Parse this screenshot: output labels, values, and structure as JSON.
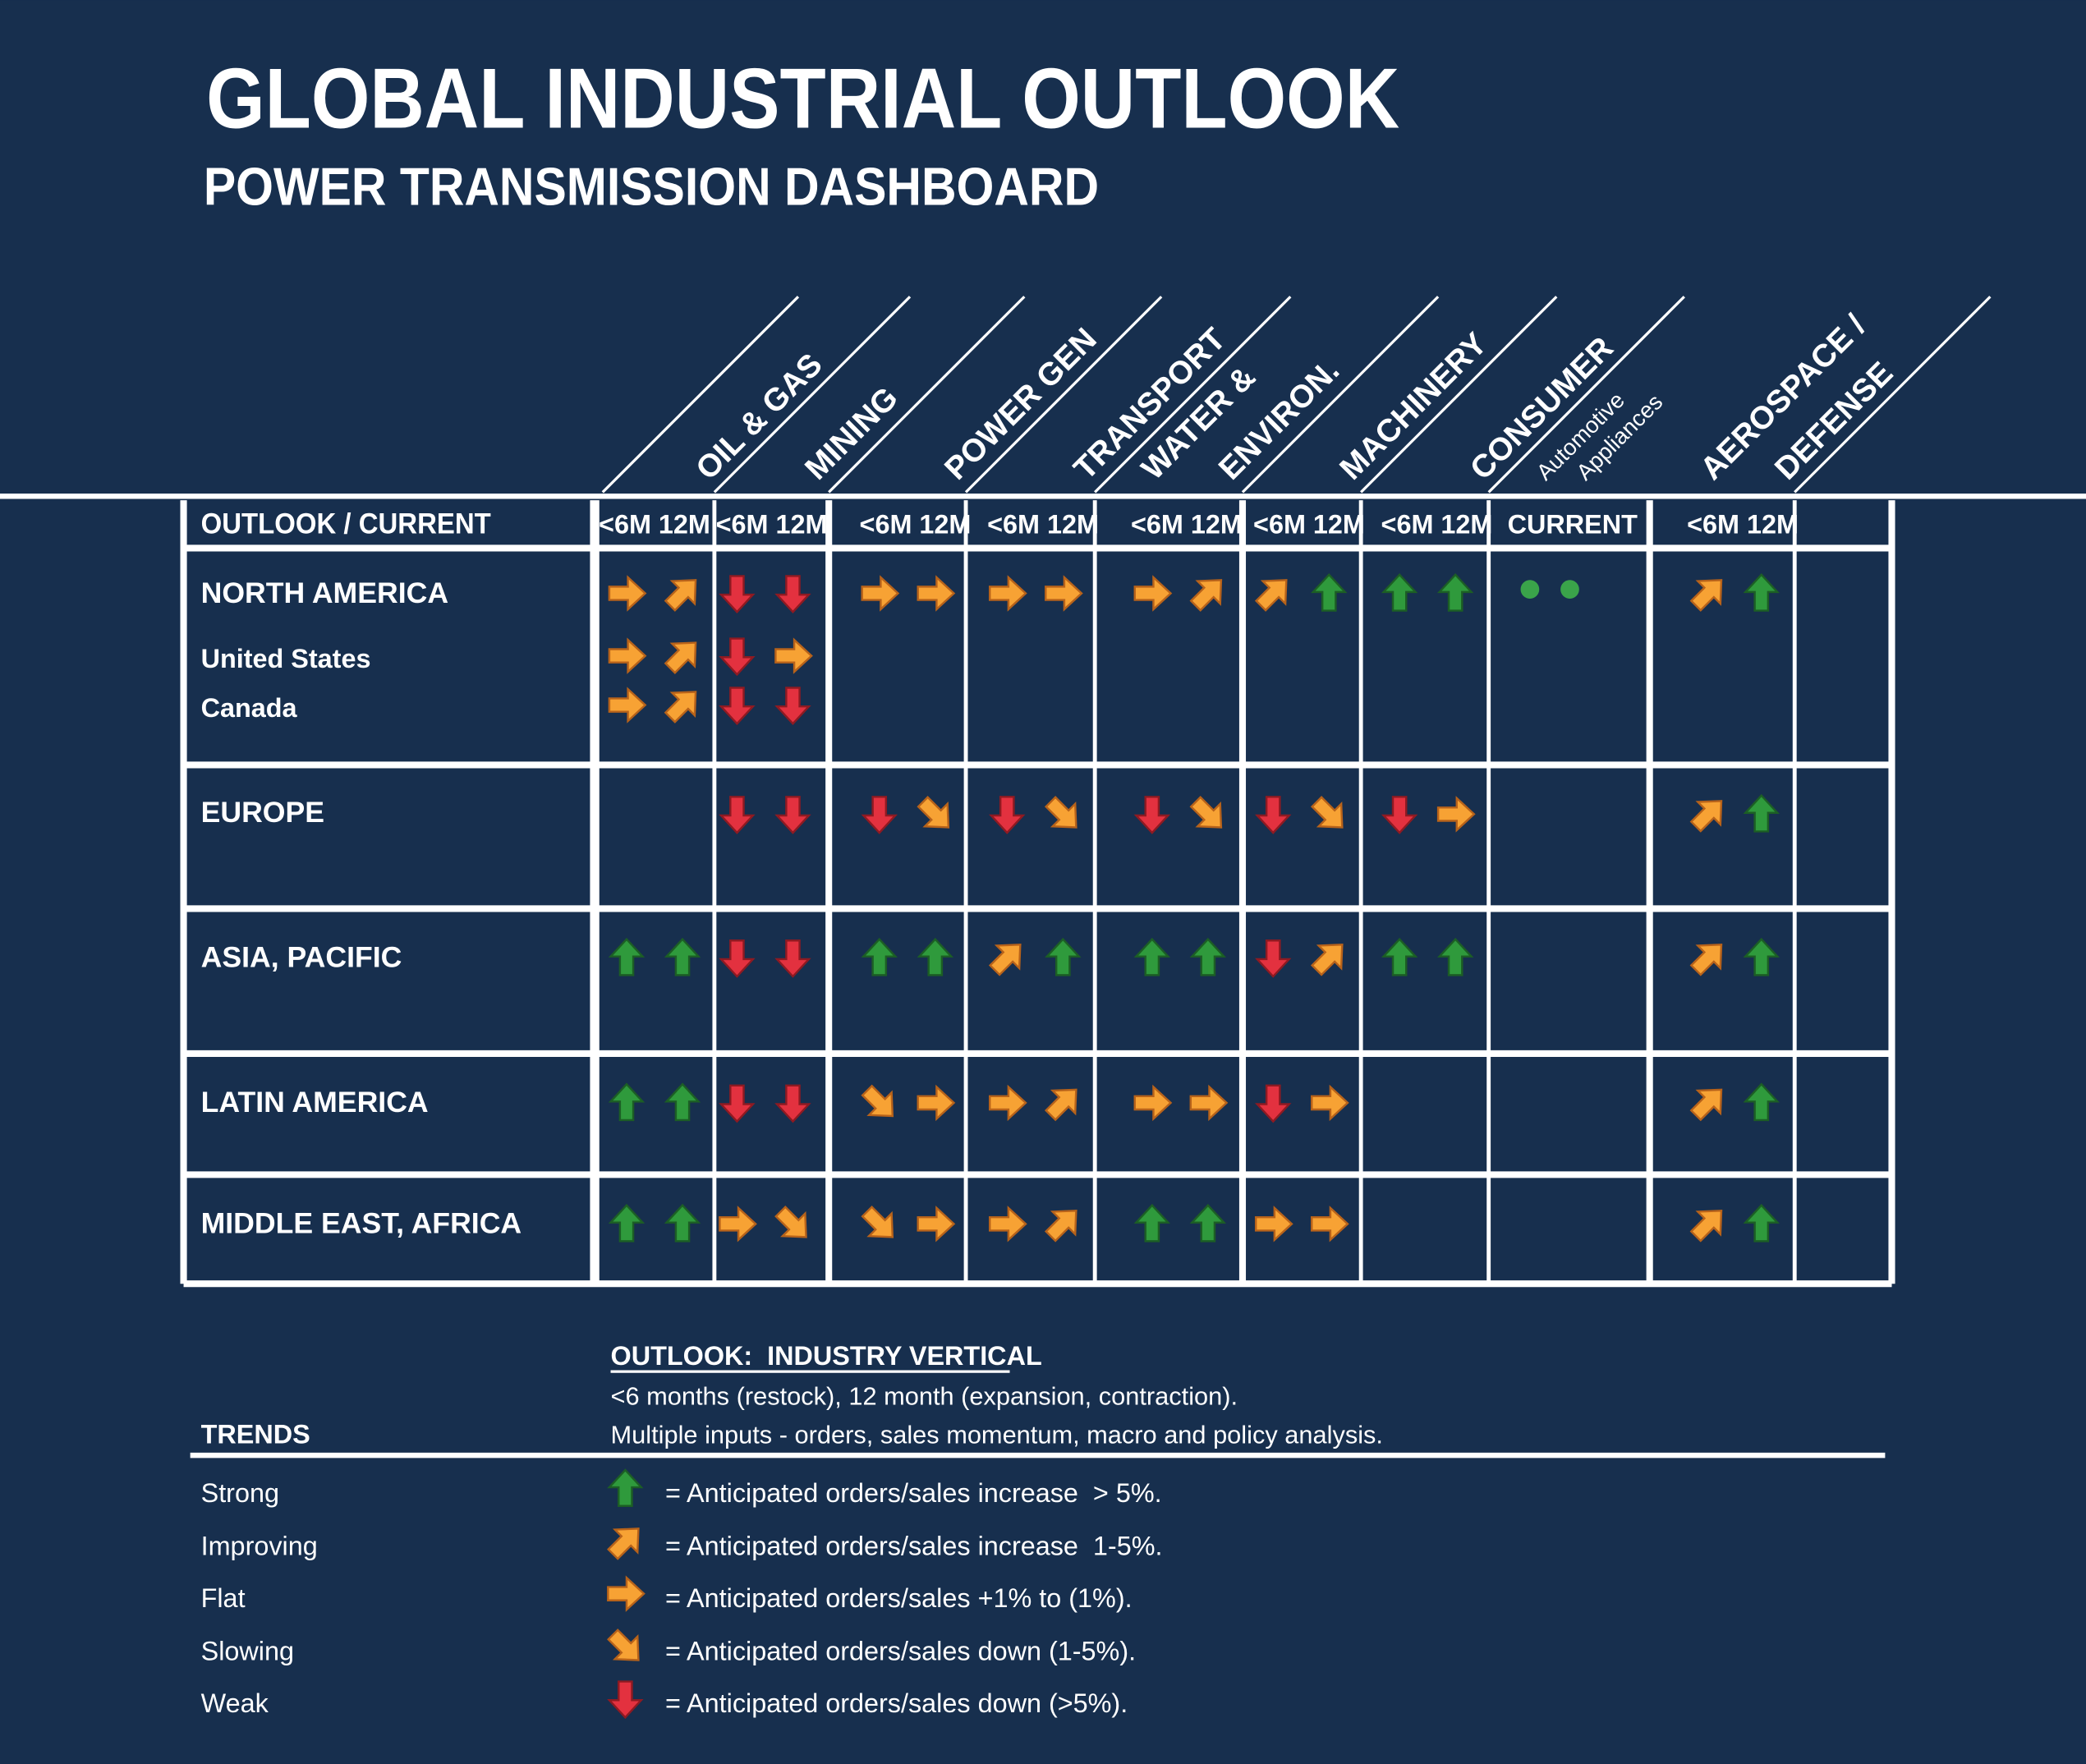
{
  "header": {
    "title": "GLOBAL INDUSTRIAL OUTLOOK",
    "subtitle": "POWER TRANSMISSION DASHBOARD"
  },
  "table": {
    "corner": "OUTLOOK / CURRENT",
    "verticals": [
      "OIL & GAS",
      "MINING",
      "POWER GEN",
      "TRANSPORT",
      "WATER &",
      "ENVIRON.",
      "MACHINERY",
      "CONSUMER",
      "Automotive",
      "Appliances",
      "AEROSPACE /",
      "DEFENSE"
    ],
    "column_headers": [
      "<6M 12M",
      "<6M 12M",
      "<6M 12M",
      "<6M 12M",
      "<6M 12M",
      "<6M 12M",
      "<6M 12M",
      "CURRENT",
      "<6M 12M"
    ],
    "rows": [
      {
        "label": "NORTH AMERICA",
        "cells": [
          [
            2,
            1
          ],
          [
            4,
            4
          ],
          [
            2,
            2
          ],
          [
            2,
            2
          ],
          [
            2,
            1
          ],
          [
            1,
            0
          ],
          [
            0,
            0
          ],
          null,
          [
            1,
            0
          ]
        ]
      },
      {
        "label": "United States",
        "cells": [
          [
            2,
            1
          ],
          [
            4,
            2
          ],
          null,
          null,
          null,
          null,
          null,
          null,
          null
        ]
      },
      {
        "label": "Canada",
        "cells": [
          [
            2,
            1
          ],
          [
            4,
            4
          ],
          null,
          null,
          null,
          null,
          null,
          null,
          null
        ]
      },
      {
        "label": "EUROPE",
        "cells": [
          null,
          [
            4,
            4
          ],
          [
            4,
            3
          ],
          [
            4,
            3
          ],
          [
            4,
            3
          ],
          [
            4,
            3
          ],
          [
            4,
            2
          ],
          null,
          [
            1,
            0
          ]
        ]
      },
      {
        "label": "ASIA, PACIFIC",
        "cells": [
          [
            0,
            0
          ],
          [
            4,
            4
          ],
          [
            0,
            0
          ],
          [
            1,
            0
          ],
          [
            0,
            0
          ],
          [
            4,
            1
          ],
          [
            0,
            0
          ],
          null,
          [
            1,
            0
          ]
        ]
      },
      {
        "label": "LATIN AMERICA",
        "cells": [
          [
            0,
            0
          ],
          [
            4,
            4
          ],
          [
            3,
            2
          ],
          [
            2,
            1
          ],
          [
            2,
            2
          ],
          [
            4,
            2
          ],
          null,
          null,
          [
            1,
            0
          ]
        ]
      },
      {
        "label": "MIDDLE EAST, AFRICA",
        "cells": [
          [
            0,
            0
          ],
          [
            2,
            3
          ],
          [
            3,
            2
          ],
          [
            2,
            1
          ],
          [
            0,
            0
          ],
          [
            2,
            2
          ],
          null,
          null,
          [
            1,
            0
          ]
        ]
      }
    ]
  },
  "notes": {
    "heading": "OUTLOOK:  INDUSTRY VERTICAL",
    "lines": [
      "<6 months (restock), 12 month (expansion, contraction).",
      "Multiple inputs - orders, sales momentum, macro and policy analysis."
    ]
  },
  "legend": {
    "heading": "TRENDS",
    "items": [
      {
        "label": "Strong",
        "text": "= Anticipated orders/sales increase  > 5%."
      },
      {
        "label": "Improving",
        "text": "= Anticipated orders/sales increase  1-5%."
      },
      {
        "label": "Flat",
        "text": "= Anticipated orders/sales +1% to (1%)."
      },
      {
        "label": "Slowing",
        "text": "= Anticipated orders/sales down (1-5%)."
      },
      {
        "label": "Weak",
        "text": "= Anticipated orders/sales down (>5%)."
      }
    ]
  }
}
